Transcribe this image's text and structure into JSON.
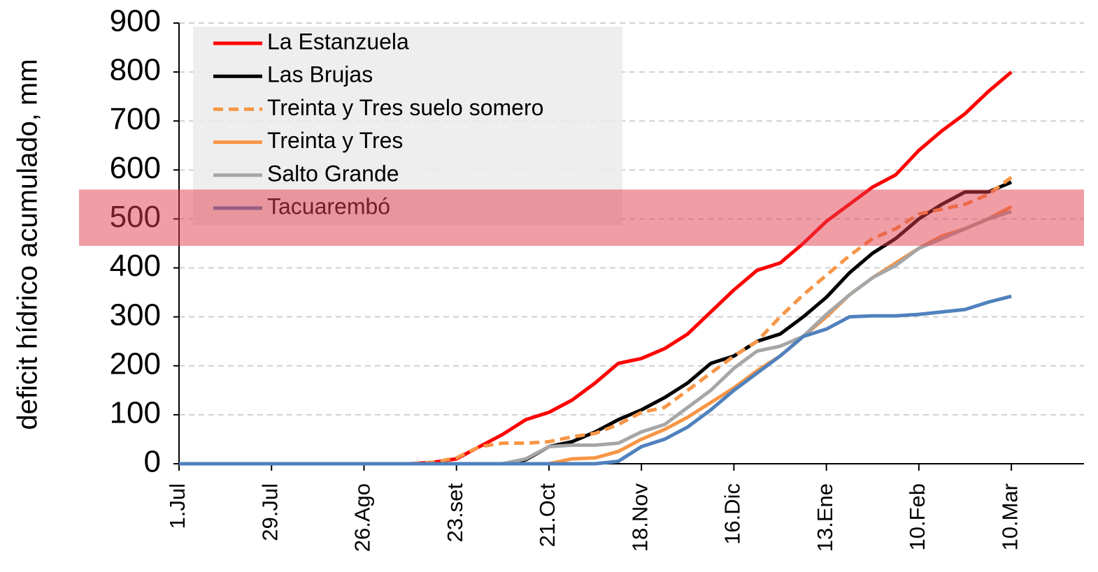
{
  "chart_data": {
    "type": "line",
    "y_label": "deficit hídrico acumulado, mm",
    "x": [
      0,
      28,
      56,
      70,
      77,
      84,
      91,
      98,
      105,
      112,
      119,
      126,
      133,
      140,
      147,
      154,
      161,
      168,
      175,
      182,
      189,
      196,
      203,
      210,
      217,
      224,
      231,
      238,
      245,
      252
    ],
    "xlim": [
      0,
      274
    ],
    "xticks": [
      {
        "value": 0,
        "label": "1.Jul"
      },
      {
        "value": 28,
        "label": "29.Jul"
      },
      {
        "value": 56,
        "label": "26.Ago"
      },
      {
        "value": 84,
        "label": "23.set"
      },
      {
        "value": 112,
        "label": "21.Oct"
      },
      {
        "value": 140,
        "label": "18.Nov"
      },
      {
        "value": 168,
        "label": "16.Dic"
      },
      {
        "value": 196,
        "label": "13.Ene"
      },
      {
        "value": 224,
        "label": "10.Feb"
      },
      {
        "value": 252,
        "label": "10.Mar"
      }
    ],
    "ylim": [
      0,
      900
    ],
    "yticks": [
      0,
      100,
      200,
      300,
      400,
      500,
      600,
      700,
      800,
      900
    ],
    "grid": true,
    "legend": "upper left",
    "band": [
      445,
      560
    ],
    "band_color": "rgba(225, 60, 75, 0.5)",
    "series": [
      {
        "name": "La Estanzuela",
        "color": "#ff0000",
        "values": [
          0,
          0,
          0,
          0,
          3,
          10,
          35,
          60,
          90,
          105,
          130,
          165,
          205,
          215,
          235,
          265,
          310,
          355,
          395,
          410,
          450,
          495,
          530,
          565,
          590,
          640,
          680,
          715,
          760,
          800
        ]
      },
      {
        "name": "Las Brujas",
        "color": "#000000",
        "values": [
          0,
          0,
          0,
          0,
          0,
          0,
          0,
          0,
          8,
          35,
          45,
          65,
          90,
          110,
          135,
          165,
          205,
          220,
          250,
          265,
          300,
          340,
          390,
          430,
          460,
          500,
          530,
          555,
          555,
          575
        ]
      },
      {
        "name": "Treinta y Tres suelo somero",
        "color": "#f79646",
        "dashed": true,
        "values": [
          0,
          0,
          0,
          0,
          3,
          12,
          35,
          42,
          42,
          45,
          55,
          62,
          80,
          105,
          115,
          150,
          185,
          220,
          250,
          300,
          345,
          385,
          425,
          460,
          480,
          510,
          520,
          530,
          550,
          585
        ]
      },
      {
        "name": "Treinta y Tres",
        "color": "#f79646",
        "values": [
          0,
          0,
          0,
          0,
          0,
          0,
          0,
          0,
          0,
          0,
          10,
          12,
          25,
          50,
          70,
          95,
          125,
          155,
          190,
          220,
          260,
          300,
          345,
          380,
          410,
          440,
          465,
          480,
          500,
          525
        ]
      },
      {
        "name": "Salto Grande",
        "color": "#a6a6a6",
        "values": [
          0,
          0,
          0,
          0,
          0,
          0,
          0,
          0,
          10,
          35,
          38,
          38,
          42,
          65,
          80,
          115,
          150,
          195,
          230,
          240,
          260,
          305,
          345,
          380,
          405,
          440,
          460,
          480,
          500,
          515
        ]
      },
      {
        "name": "Tacuarembó",
        "color": "#4f81bd",
        "values": [
          0,
          0,
          0,
          0,
          0,
          0,
          0,
          0,
          0,
          0,
          0,
          0,
          5,
          35,
          50,
          75,
          110,
          150,
          185,
          220,
          260,
          275,
          300,
          302,
          302,
          305,
          310,
          315,
          330,
          342
        ]
      }
    ]
  }
}
